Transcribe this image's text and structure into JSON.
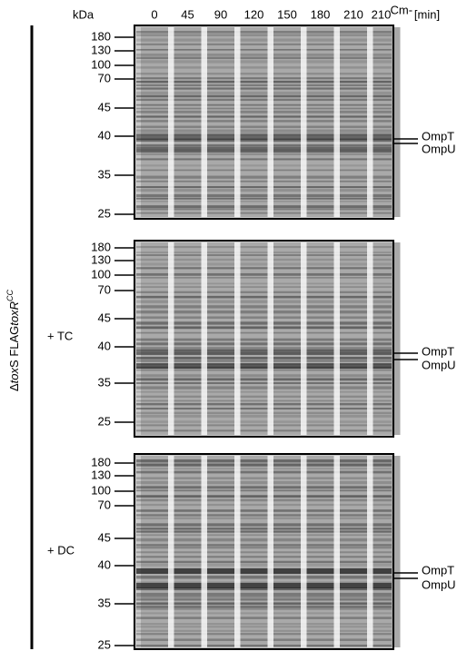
{
  "header": {
    "unit": "kDa",
    "lanes": [
      "0",
      "45",
      "90",
      "120",
      "150",
      "180",
      "210",
      "210"
    ],
    "lane_superscript": "Cm-",
    "time_unit": "[min]"
  },
  "side_label": {
    "prefix": "Δ",
    "gene1": "tox",
    "gene1_suffix": "S FLAG",
    "gene2": "tox",
    "gene2_suffix": "R",
    "superscript": "CC"
  },
  "panels": [
    {
      "markers": [
        180,
        130,
        100,
        70,
        45,
        40,
        35,
        25
      ],
      "bands": [
        "OmpT",
        "OmpU"
      ]
    },
    {
      "treatment": "+ TC",
      "markers": [
        180,
        130,
        100,
        70,
        45,
        40,
        35,
        25
      ],
      "bands": [
        "OmpT",
        "OmpU"
      ]
    },
    {
      "treatment": "+ DC",
      "markers": [
        180,
        130,
        100,
        70,
        45,
        40,
        35,
        25
      ],
      "bands": [
        "OmpT",
        "OmpU"
      ]
    }
  ]
}
